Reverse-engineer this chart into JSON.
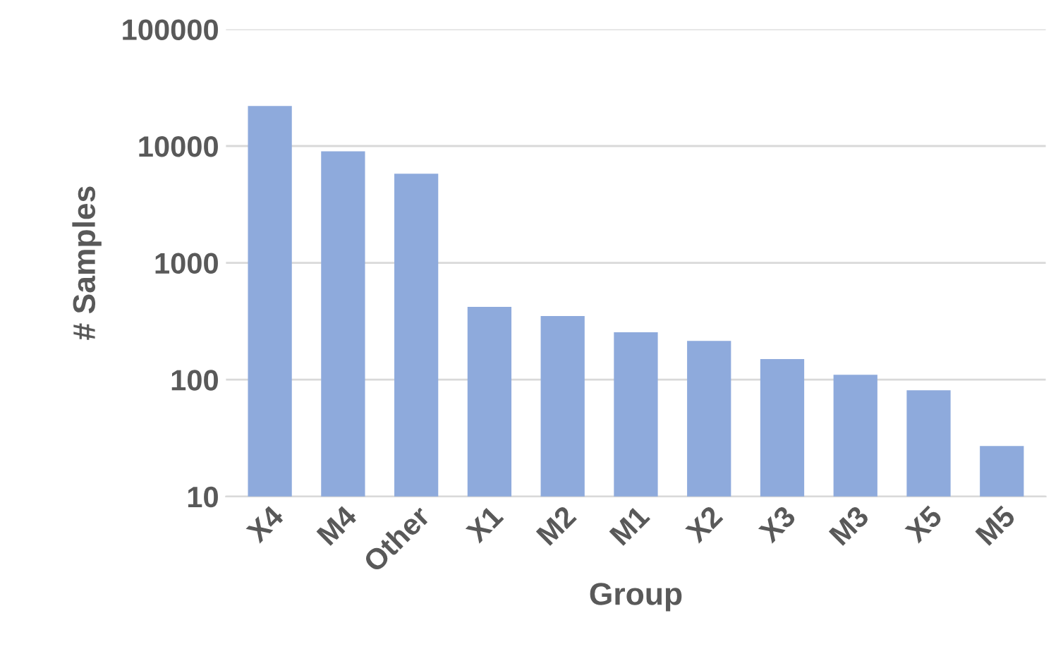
{
  "chart_data": {
    "type": "bar",
    "xlabel": "Group",
    "ylabel": "# Samples",
    "categories": [
      "X4",
      "M4",
      "Other",
      "X1",
      "M2",
      "M1",
      "X2",
      "X3",
      "M3",
      "X5",
      "M5"
    ],
    "values": [
      22000,
      9000,
      5800,
      420,
      350,
      255,
      215,
      150,
      110,
      81,
      27
    ],
    "color": "#8eaadc",
    "log": "y",
    "ylim": [
      10,
      100000
    ],
    "yticks": [
      10,
      100,
      1000,
      10000,
      100000
    ],
    "grid": "y"
  }
}
